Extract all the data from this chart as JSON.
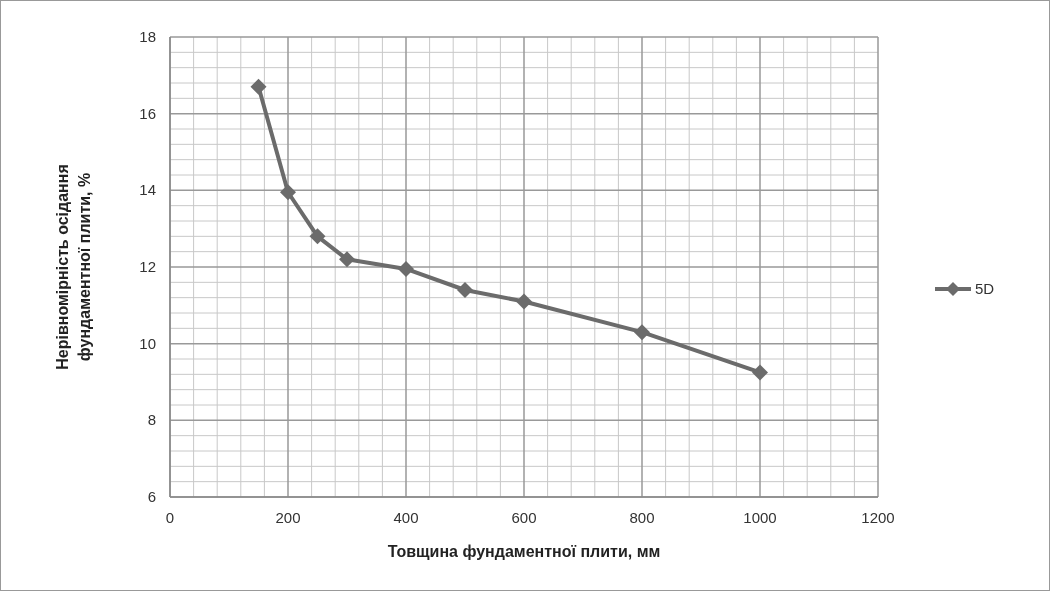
{
  "chart_data": {
    "type": "line",
    "xlabel": "Товщина фундаментної плити, мм",
    "ylabel": "Нерівномірність осідання фундаментної плити, %",
    "x": [
      150,
      200,
      250,
      300,
      400,
      500,
      600,
      800,
      1000
    ],
    "series": [
      {
        "name": "5D",
        "color": "#6b6b6b",
        "values": [
          16.7,
          13.95,
          12.8,
          12.2,
          11.95,
          11.4,
          11.1,
          10.3,
          9.25
        ]
      }
    ],
    "xlim": [
      0,
      1200
    ],
    "xticks": [
      0,
      200,
      400,
      600,
      800,
      1000,
      1200
    ],
    "ylim": [
      6,
      18
    ],
    "yticks": [
      6,
      8,
      10,
      12,
      14,
      16,
      18
    ],
    "grid": true,
    "legend": "right",
    "marker": "diamond",
    "line_style": "solid"
  }
}
